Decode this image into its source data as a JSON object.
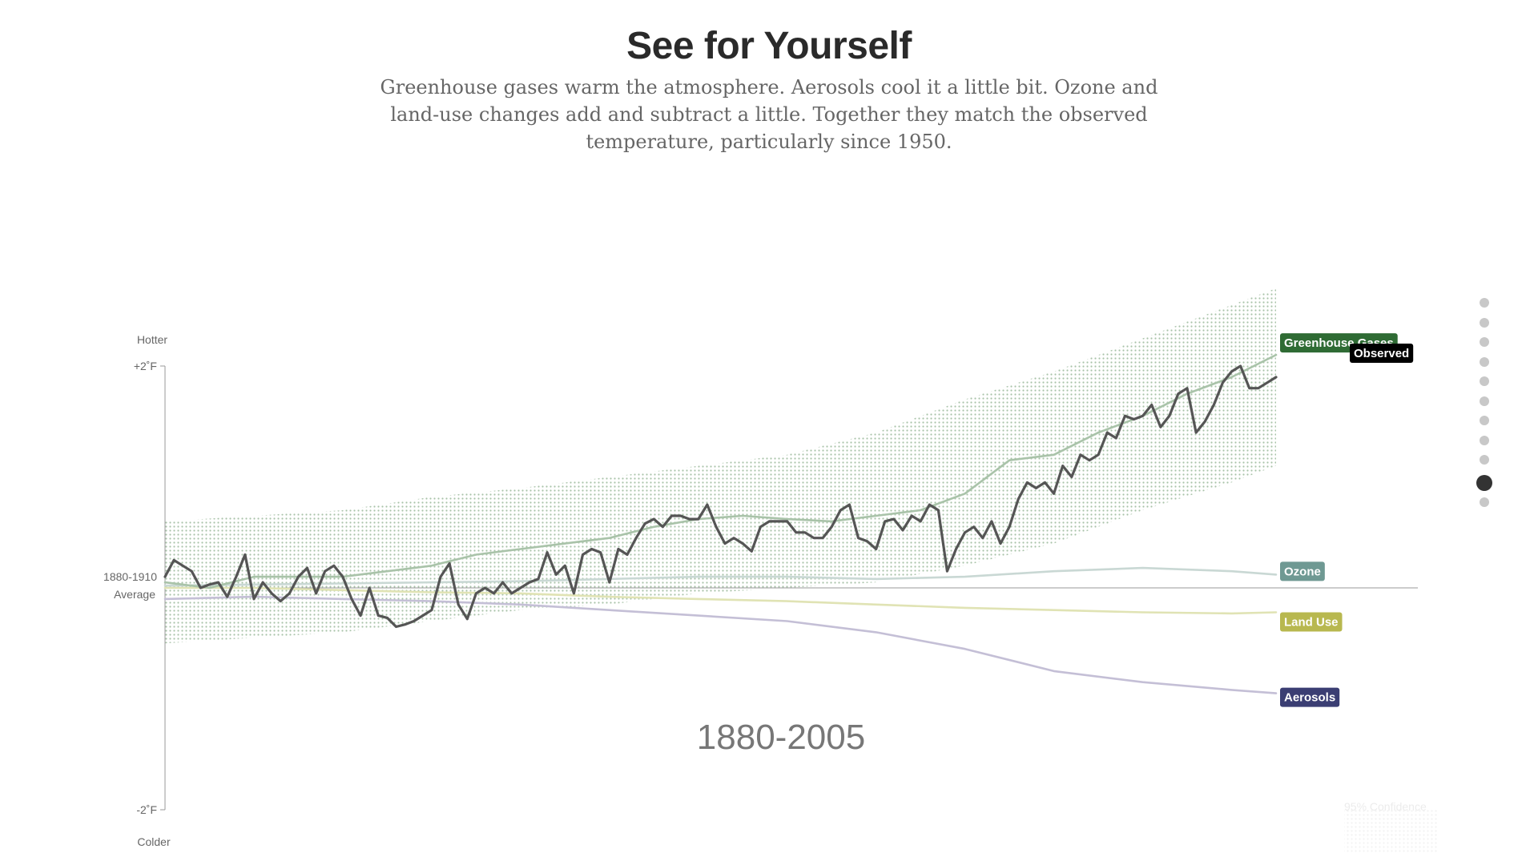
{
  "header": {
    "title": "See for Yourself",
    "subtitle": "Greenhouse gases warm the atmosphere. Aerosols cool it a little bit. Ozone and land-use changes add and subtract a little. Together they match the observed temperature, particularly since 1950."
  },
  "nav": {
    "count": 11,
    "active_index": 9
  },
  "chart_data": {
    "type": "line",
    "x_start": 1880,
    "x_end": 2005,
    "y_range": [
      -2,
      2
    ],
    "y_unit": "°F",
    "axis": {
      "top_label": "Hotter",
      "top_tick": "+2˚F",
      "baseline_label_line1": "1880-1910",
      "baseline_label_line2": "Average",
      "bottom_tick": "-2˚F",
      "bottom_label": "Colder"
    },
    "period_label": "1880-2005",
    "confidence_label": "95% Confidence",
    "series": [
      {
        "name": "Greenhouse Gases",
        "color": "#a9c3a9",
        "label_color": "#2f6b34",
        "x": [
          1880,
          1885,
          1890,
          1895,
          1900,
          1905,
          1910,
          1915,
          1920,
          1925,
          1930,
          1935,
          1940,
          1945,
          1950,
          1955,
          1960,
          1965,
          1970,
          1975,
          1980,
          1985,
          1990,
          1995,
          2000,
          2005
        ],
        "y": [
          0.05,
          0.0,
          0.1,
          0.1,
          0.1,
          0.15,
          0.2,
          0.3,
          0.35,
          0.4,
          0.45,
          0.55,
          0.62,
          0.65,
          0.62,
          0.6,
          0.65,
          0.7,
          0.85,
          1.15,
          1.2,
          1.4,
          1.55,
          1.75,
          1.9,
          2.1
        ]
      },
      {
        "name": "Observed",
        "color": "#555555",
        "label_color": "#000000",
        "x": [
          1880,
          1881,
          1882,
          1883,
          1884,
          1885,
          1886,
          1887,
          1888,
          1889,
          1890,
          1891,
          1892,
          1893,
          1894,
          1895,
          1896,
          1897,
          1898,
          1899,
          1900,
          1901,
          1902,
          1903,
          1904,
          1905,
          1906,
          1907,
          1908,
          1909,
          1910,
          1911,
          1912,
          1913,
          1914,
          1915,
          1916,
          1917,
          1918,
          1919,
          1920,
          1921,
          1922,
          1923,
          1924,
          1925,
          1926,
          1927,
          1928,
          1929,
          1930,
          1931,
          1932,
          1933,
          1934,
          1935,
          1936,
          1937,
          1938,
          1939,
          1940,
          1941,
          1942,
          1943,
          1944,
          1945,
          1946,
          1947,
          1948,
          1949,
          1950,
          1951,
          1952,
          1953,
          1954,
          1955,
          1956,
          1957,
          1958,
          1959,
          1960,
          1961,
          1962,
          1963,
          1964,
          1965,
          1966,
          1967,
          1968,
          1969,
          1970,
          1971,
          1972,
          1973,
          1974,
          1975,
          1976,
          1977,
          1978,
          1979,
          1980,
          1981,
          1982,
          1983,
          1984,
          1985,
          1986,
          1987,
          1988,
          1989,
          1990,
          1991,
          1992,
          1993,
          1994,
          1995,
          1996,
          1997,
          1998,
          1999,
          2000,
          2001,
          2002,
          2003,
          2004,
          2005
        ],
        "y": [
          0.1,
          0.25,
          0.2,
          0.15,
          0.0,
          0.03,
          0.05,
          -0.08,
          0.1,
          0.3,
          -0.1,
          0.05,
          -0.05,
          -0.12,
          -0.05,
          0.1,
          0.18,
          -0.05,
          0.15,
          0.2,
          0.1,
          -0.1,
          -0.25,
          0.0,
          -0.25,
          -0.27,
          -0.35,
          -0.33,
          -0.3,
          -0.25,
          -0.2,
          0.1,
          0.22,
          -0.15,
          -0.28,
          -0.05,
          0.0,
          -0.05,
          0.05,
          -0.05,
          0.0,
          0.05,
          0.08,
          0.32,
          0.12,
          0.2,
          -0.05,
          0.3,
          0.35,
          0.32,
          0.05,
          0.35,
          0.3,
          0.45,
          0.58,
          0.62,
          0.55,
          0.65,
          0.65,
          0.62,
          0.62,
          0.75,
          0.55,
          0.4,
          0.45,
          0.4,
          0.33,
          0.55,
          0.6,
          0.6,
          0.6,
          0.5,
          0.5,
          0.45,
          0.45,
          0.55,
          0.7,
          0.75,
          0.45,
          0.42,
          0.35,
          0.6,
          0.62,
          0.52,
          0.65,
          0.6,
          0.75,
          0.7,
          0.15,
          0.35,
          0.5,
          0.55,
          0.45,
          0.6,
          0.4,
          0.55,
          0.8,
          0.95,
          0.9,
          0.95,
          0.85,
          1.1,
          1.0,
          1.2,
          1.15,
          1.2,
          1.4,
          1.35,
          1.55,
          1.52,
          1.55,
          1.65,
          1.45,
          1.55,
          1.75,
          1.8,
          1.4,
          1.5,
          1.65,
          1.85,
          1.95,
          2.0,
          1.8,
          1.8,
          1.85,
          1.9
        ],
        "reduced": true
      },
      {
        "name": "Ozone",
        "color": "#c9d8d4",
        "label_color": "#6f9993",
        "x": [
          1880,
          1890,
          1900,
          1910,
          1920,
          1930,
          1940,
          1950,
          1960,
          1970,
          1980,
          1990,
          2000,
          2005
        ],
        "y": [
          0.02,
          0.03,
          0.04,
          0.05,
          0.06,
          0.08,
          0.1,
          0.1,
          0.08,
          0.1,
          0.15,
          0.18,
          0.15,
          0.12
        ]
      },
      {
        "name": "Land Use",
        "color": "#e0e3b4",
        "label_color": "#b8b84f",
        "x": [
          1880,
          1890,
          1900,
          1910,
          1920,
          1930,
          1940,
          1950,
          1960,
          1970,
          1980,
          1990,
          2000,
          2005
        ],
        "y": [
          0.0,
          0.0,
          -0.02,
          -0.04,
          -0.05,
          -0.08,
          -0.1,
          -0.12,
          -0.15,
          -0.18,
          -0.2,
          -0.22,
          -0.23,
          -0.22
        ]
      },
      {
        "name": "Aerosols",
        "color": "#c4bfd6",
        "label_color": "#3b3e73",
        "x": [
          1880,
          1890,
          1900,
          1910,
          1920,
          1930,
          1940,
          1950,
          1960,
          1970,
          1980,
          1990,
          2000,
          2005
        ],
        "y": [
          -0.1,
          -0.08,
          -0.1,
          -0.12,
          -0.15,
          -0.2,
          -0.25,
          -0.3,
          -0.4,
          -0.55,
          -0.75,
          -0.85,
          -0.92,
          -0.95
        ]
      }
    ],
    "band": {
      "name": "95% Confidence",
      "color": "#a9c3a9",
      "x": [
        1880,
        1890,
        1900,
        1910,
        1920,
        1930,
        1940,
        1950,
        1960,
        1970,
        1980,
        1990,
        2000,
        2005
      ],
      "upper": [
        0.6,
        0.65,
        0.7,
        0.82,
        0.9,
        1.0,
        1.1,
        1.2,
        1.4,
        1.7,
        1.95,
        2.25,
        2.55,
        2.7
      ],
      "lower": [
        -0.5,
        -0.45,
        -0.4,
        -0.3,
        -0.2,
        -0.15,
        -0.05,
        0.0,
        0.05,
        0.2,
        0.4,
        0.7,
        0.95,
        1.1
      ]
    }
  }
}
